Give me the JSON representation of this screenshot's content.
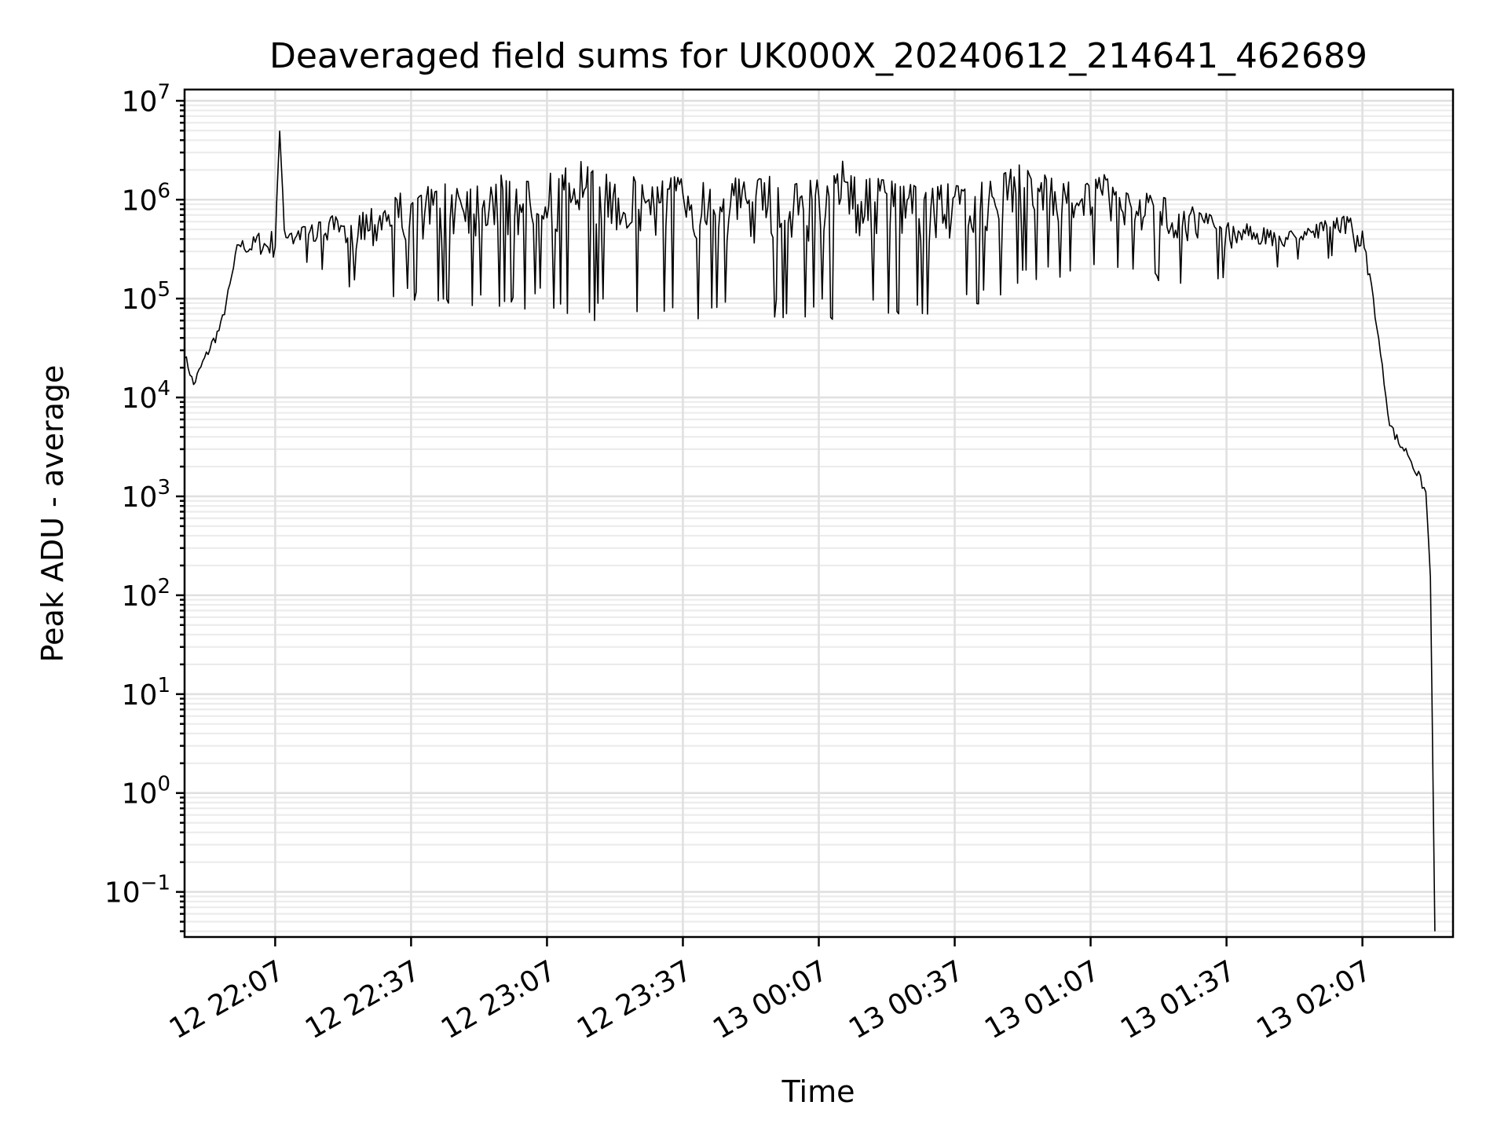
{
  "chart_data": {
    "type": "line",
    "title": "Deaveraged field sums for UK000X_20240612_214641_462689",
    "xlabel": "Time",
    "ylabel": "Peak ADU - average",
    "yscale": "log",
    "ylim": [
      0.035,
      13000000
    ],
    "xlim": [
      "2024-06-12 21:47:00",
      "2024-06-13 02:27:00"
    ],
    "grid": "on",
    "legend": "none",
    "line_color": "#000000",
    "x_ticks": [
      {
        "label": "12 22:07",
        "time": "2024-06-12 22:07"
      },
      {
        "label": "12 22:37",
        "time": "2024-06-12 22:37"
      },
      {
        "label": "12 23:07",
        "time": "2024-06-12 23:07"
      },
      {
        "label": "12 23:37",
        "time": "2024-06-12 23:37"
      },
      {
        "label": "13 00:07",
        "time": "2024-06-13 00:07"
      },
      {
        "label": "13 00:37",
        "time": "2024-06-13 00:37"
      },
      {
        "label": "13 01:07",
        "time": "2024-06-13 01:07"
      },
      {
        "label": "13 01:37",
        "time": "2024-06-13 01:37"
      },
      {
        "label": "13 02:07",
        "time": "2024-06-13 02:07"
      }
    ],
    "y_ticks": [
      {
        "base": "10",
        "exp": "7",
        "value": 10000000
      },
      {
        "base": "10",
        "exp": "6",
        "value": 1000000
      },
      {
        "base": "10",
        "exp": "5",
        "value": 100000
      },
      {
        "base": "10",
        "exp": "4",
        "value": 10000
      },
      {
        "base": "10",
        "exp": "3",
        "value": 1000
      },
      {
        "base": "10",
        "exp": "2",
        "value": 100
      },
      {
        "base": "10",
        "exp": "1",
        "value": 10
      },
      {
        "base": "10",
        "exp": "0",
        "value": 1
      },
      {
        "base": "10",
        "exp": "−1",
        "value": 0.1
      }
    ],
    "series": [
      {
        "x": [
          "2024-06-12 21:47",
          "2024-06-12 21:49",
          "2024-06-12 21:51",
          "2024-06-12 21:53",
          "2024-06-12 21:55",
          "2024-06-12 21:57",
          "2024-06-12 21:59",
          "2024-06-12 22:01",
          "2024-06-12 22:03",
          "2024-06-12 22:05",
          "2024-06-12 22:07",
          "2024-06-12 22:08",
          "2024-06-12 22:09",
          "2024-06-12 22:11",
          "2024-06-12 22:14",
          "2024-06-12 22:17",
          "2024-06-12 22:20",
          "2024-06-12 22:23",
          "2024-06-12 22:26",
          "2024-06-12 22:29",
          "2024-06-12 22:32",
          "2024-06-12 22:35",
          "2024-06-12 22:37",
          "2024-06-12 22:40",
          "2024-06-12 22:43",
          "2024-06-12 22:46",
          "2024-06-12 22:49",
          "2024-06-12 22:52",
          "2024-06-12 22:55",
          "2024-06-12 22:58",
          "2024-06-12 23:01",
          "2024-06-12 23:04",
          "2024-06-12 23:07",
          "2024-06-12 23:10",
          "2024-06-12 23:13",
          "2024-06-12 23:16",
          "2024-06-12 23:19",
          "2024-06-12 23:22",
          "2024-06-12 23:25",
          "2024-06-12 23:28",
          "2024-06-12 23:31",
          "2024-06-12 23:34",
          "2024-06-12 23:37",
          "2024-06-12 23:40",
          "2024-06-12 23:43",
          "2024-06-12 23:46",
          "2024-06-12 23:49",
          "2024-06-12 23:52",
          "2024-06-12 23:55",
          "2024-06-12 23:58",
          "2024-06-13 00:01",
          "2024-06-13 00:04",
          "2024-06-13 00:07",
          "2024-06-13 00:10",
          "2024-06-13 00:13",
          "2024-06-13 00:16",
          "2024-06-13 00:19",
          "2024-06-13 00:22",
          "2024-06-13 00:25",
          "2024-06-13 00:28",
          "2024-06-13 00:31",
          "2024-06-13 00:34",
          "2024-06-13 00:37",
          "2024-06-13 00:40",
          "2024-06-13 00:43",
          "2024-06-13 00:46",
          "2024-06-13 00:49",
          "2024-06-13 00:52",
          "2024-06-13 00:55",
          "2024-06-13 00:58",
          "2024-06-13 01:01",
          "2024-06-13 01:04",
          "2024-06-13 01:07",
          "2024-06-13 01:10",
          "2024-06-13 01:13",
          "2024-06-13 01:16",
          "2024-06-13 01:19",
          "2024-06-13 01:22",
          "2024-06-13 01:25",
          "2024-06-13 01:28",
          "2024-06-13 01:31",
          "2024-06-13 01:34",
          "2024-06-13 01:37",
          "2024-06-13 01:40",
          "2024-06-13 01:43",
          "2024-06-13 01:46",
          "2024-06-13 01:49",
          "2024-06-13 01:52",
          "2024-06-13 01:55",
          "2024-06-13 01:58",
          "2024-06-13 02:01",
          "2024-06-13 02:04",
          "2024-06-13 02:07",
          "2024-06-13 02:09",
          "2024-06-13 02:11",
          "2024-06-13 02:13",
          "2024-06-13 02:15",
          "2024-06-13 02:17",
          "2024-06-13 02:19",
          "2024-06-13 02:21",
          "2024-06-13 02:22",
          "2024-06-13 02:23"
        ],
        "y": [
          30000,
          15000,
          25000,
          40000,
          60000,
          150000,
          450000,
          350000,
          500000,
          450000,
          550000,
          5500000,
          600000,
          500000,
          550000,
          600000,
          700000,
          500000,
          800000,
          900000,
          1100000,
          1200000,
          900000,
          1400000,
          1300000,
          1600000,
          1800000,
          1500000,
          1900000,
          1700000,
          1600000,
          1900000,
          2000000,
          1800000,
          2800000,
          2200000,
          1900000,
          1700000,
          1800000,
          1600000,
          1700000,
          1800000,
          1700000,
          1900000,
          1600000,
          1500000,
          1700000,
          1400000,
          1800000,
          1600000,
          1500000,
          1700000,
          1600000,
          1700000,
          3200000,
          1500000,
          1700000,
          1600000,
          1500000,
          1400000,
          1300000,
          1500000,
          1400000,
          1300000,
          1500000,
          1600000,
          2000000,
          2400000,
          2100000,
          1700000,
          1500000,
          1600000,
          1500000,
          1800000,
          1300000,
          1100000,
          1200000,
          1100000,
          1000000,
          900000,
          800000,
          700000,
          600000,
          550000,
          600000,
          500000,
          450000,
          500000,
          550000,
          600000,
          650000,
          700000,
          500000,
          150000,
          30000,
          6000,
          4000,
          3000,
          2000,
          1200,
          180,
          0.04
        ],
        "y_low": [
          25000,
          12000,
          20000,
          30000,
          45000,
          120000,
          300000,
          280000,
          280000,
          260000,
          250000,
          2000000,
          250000,
          220000,
          200000,
          180000,
          150000,
          130000,
          120000,
          100000,
          90000,
          100000,
          95000,
          90000,
          85000,
          80000,
          75000,
          70000,
          80000,
          65000,
          75000,
          80000,
          85000,
          70000,
          65000,
          60000,
          60000,
          55000,
          55000,
          55000,
          60000,
          65000,
          60000,
          60000,
          55000,
          60000,
          65000,
          60000,
          58000,
          60000,
          62000,
          60000,
          65000,
          60000,
          65000,
          55000,
          60000,
          58000,
          62000,
          60000,
          65000,
          70000,
          75000,
          80000,
          90000,
          100000,
          120000,
          130000,
          140000,
          150000,
          160000,
          170000,
          180000,
          170000,
          160000,
          150000,
          140000,
          150000,
          140000,
          130000,
          130000,
          140000,
          150000,
          160000,
          170000,
          180000,
          200000,
          220000,
          240000,
          250000,
          260000,
          280000,
          300000,
          120000,
          25000,
          5000,
          3000,
          2500,
          1500,
          1000,
          150,
          0.04
        ]
      }
    ]
  }
}
